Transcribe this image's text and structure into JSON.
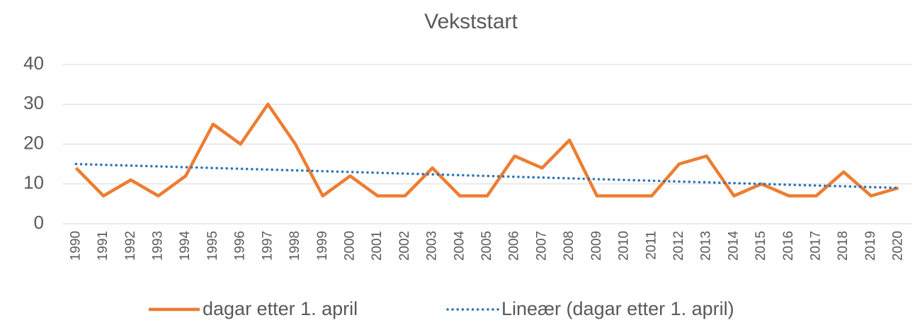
{
  "chart_data": {
    "type": "line",
    "title": "Vekststart",
    "categories": [
      "1990",
      "1991",
      "1992",
      "1993",
      "1994",
      "1995",
      "1996",
      "1997",
      "1998",
      "1999",
      "2000",
      "2001",
      "2002",
      "2003",
      "2004",
      "2005",
      "2006",
      "2007",
      "2008",
      "2009",
      "2010",
      "2011",
      "2012",
      "2013",
      "2014",
      "2015",
      "2016",
      "2017",
      "2018",
      "2019",
      "2020"
    ],
    "series": [
      {
        "name": "dagar etter 1. april",
        "color": "#ed7d31",
        "style": "solid",
        "values": [
          14,
          7,
          11,
          7,
          12,
          25,
          20,
          30,
          20,
          7,
          12,
          7,
          7,
          14,
          7,
          7,
          17,
          14,
          21,
          7,
          7,
          7,
          15,
          17,
          7,
          10,
          7,
          7,
          13,
          7,
          9
        ]
      },
      {
        "name": "Lineær (dagar etter 1. april)",
        "color": "#2e75b6",
        "style": "dotted",
        "values": [
          15,
          14.8,
          14.6,
          14.4,
          14.2,
          14,
          13.8,
          13.6,
          13.4,
          13.2,
          13,
          12.8,
          12.6,
          12.4,
          12.2,
          12,
          11.8,
          11.6,
          11.4,
          11.2,
          11,
          10.8,
          10.6,
          10.4,
          10.2,
          10,
          9.8,
          9.6,
          9.4,
          9.2,
          9
        ]
      }
    ],
    "ylim": [
      0,
      40
    ],
    "yticks": [
      0,
      10,
      20,
      30,
      40
    ],
    "grid": true,
    "legend": "bottom"
  }
}
